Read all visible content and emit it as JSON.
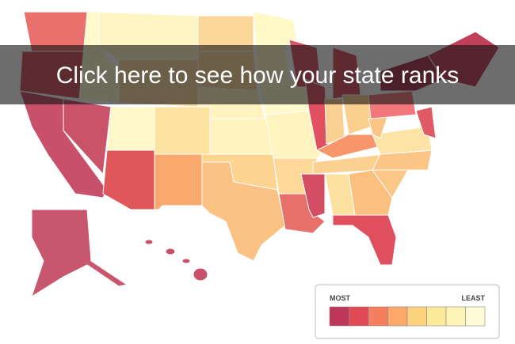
{
  "banner": {
    "text": "Click here to see how your state ranks"
  },
  "legend": {
    "most": "MOST",
    "least": "LEAST"
  }
}
